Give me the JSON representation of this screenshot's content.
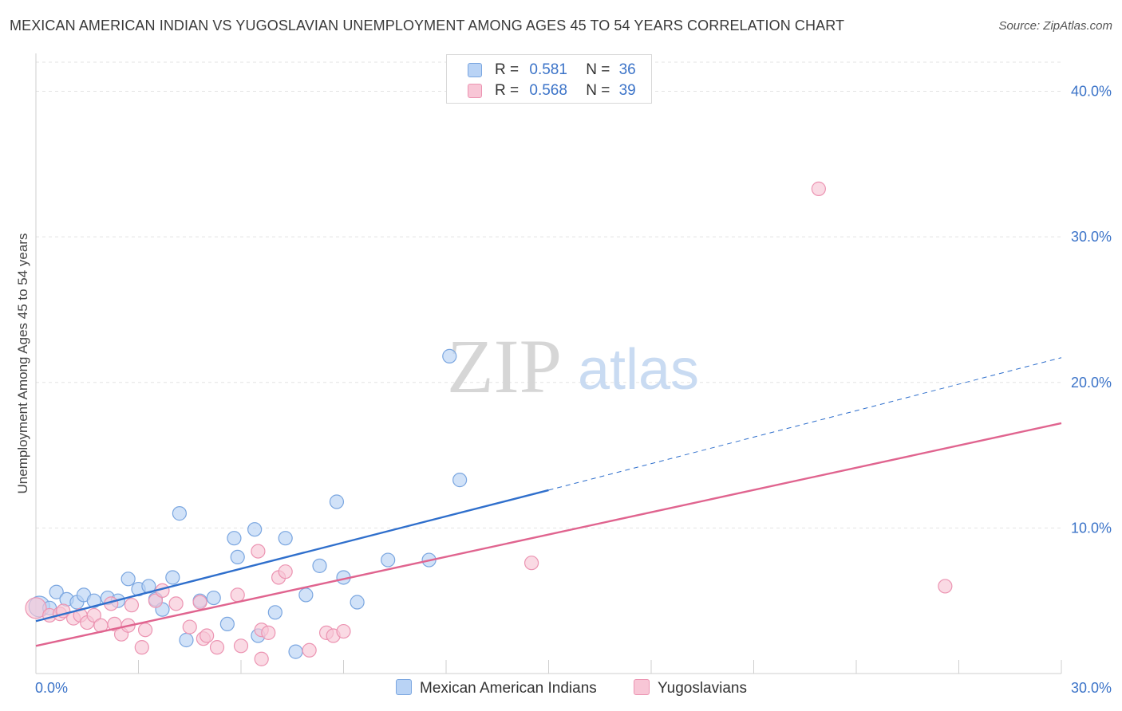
{
  "title": "MEXICAN AMERICAN INDIAN VS YUGOSLAVIAN UNEMPLOYMENT AMONG AGES 45 TO 54 YEARS CORRELATION CHART",
  "source": "Source: ZipAtlas.com",
  "watermark": {
    "zip": "ZIP",
    "atlas": "atlas"
  },
  "legend": {
    "r_label": "R =",
    "n_label": "N =",
    "rows": [
      {
        "r": "0.581",
        "n": "36"
      },
      {
        "r": "0.568",
        "n": "39"
      }
    ]
  },
  "colors": {
    "blue_fill": "#b9d3f5",
    "blue_stroke": "#7aa6e0",
    "blue_line": "#2f6fcc",
    "pink_fill": "#f8c6d6",
    "pink_stroke": "#ec94b2",
    "pink_line": "#e0648f",
    "tick_label": "#3b73c8",
    "grid": "#e3e3e3"
  },
  "chart_data": {
    "type": "scatter",
    "title": "MEXICAN AMERICAN INDIAN VS YUGOSLAVIAN UNEMPLOYMENT AMONG AGES 45 TO 54 YEARS CORRELATION CHART",
    "xlabel": "",
    "ylabel": "Unemployment Among Ages 45 to 54 years",
    "xlim": [
      0,
      30
    ],
    "ylim": [
      0,
      42
    ],
    "x_tick_labels": [
      "0.0%",
      "30.0%"
    ],
    "y_ticks": [
      10,
      20,
      30,
      40
    ],
    "y_tick_labels": [
      "10.0%",
      "20.0%",
      "30.0%",
      "40.0%"
    ],
    "grid": true,
    "legend_position": "top-center",
    "series": [
      {
        "name": "Mexican American Indians",
        "r": 0.581,
        "n": 36,
        "points": [
          [
            0.1,
            4.6
          ],
          [
            0.4,
            4.5
          ],
          [
            0.6,
            5.6
          ],
          [
            0.9,
            5.1
          ],
          [
            1.2,
            4.9
          ],
          [
            1.4,
            5.4
          ],
          [
            1.7,
            5.0
          ],
          [
            2.1,
            5.2
          ],
          [
            2.4,
            5.0
          ],
          [
            2.7,
            6.5
          ],
          [
            3.0,
            5.8
          ],
          [
            3.3,
            6.0
          ],
          [
            3.5,
            5.1
          ],
          [
            3.7,
            4.4
          ],
          [
            4.0,
            6.6
          ],
          [
            4.2,
            11.0
          ],
          [
            4.4,
            2.3
          ],
          [
            4.8,
            5.0
          ],
          [
            5.2,
            5.2
          ],
          [
            5.6,
            3.4
          ],
          [
            5.8,
            9.3
          ],
          [
            5.9,
            8.0
          ],
          [
            6.4,
            9.9
          ],
          [
            6.5,
            2.6
          ],
          [
            7.0,
            4.2
          ],
          [
            7.3,
            9.3
          ],
          [
            7.9,
            5.4
          ],
          [
            8.3,
            7.4
          ],
          [
            8.8,
            11.8
          ],
          [
            9.0,
            6.6
          ],
          [
            9.4,
            4.9
          ],
          [
            10.3,
            7.8
          ],
          [
            11.5,
            7.8
          ],
          [
            12.1,
            21.8
          ],
          [
            12.4,
            13.3
          ],
          [
            7.6,
            1.5
          ]
        ],
        "trend": {
          "x": [
            0,
            15
          ],
          "y": [
            3.6,
            12.6
          ]
        },
        "trend_extension": {
          "x": [
            15,
            30
          ],
          "y": [
            12.6,
            21.7
          ]
        }
      },
      {
        "name": "Yugoslavians",
        "r": 0.568,
        "n": 39,
        "points": [
          [
            0.0,
            4.5
          ],
          [
            0.4,
            4.0
          ],
          [
            0.7,
            4.1
          ],
          [
            0.8,
            4.3
          ],
          [
            1.1,
            3.8
          ],
          [
            1.3,
            4.0
          ],
          [
            1.5,
            3.5
          ],
          [
            1.7,
            4.0
          ],
          [
            1.9,
            3.3
          ],
          [
            2.2,
            4.8
          ],
          [
            2.3,
            3.4
          ],
          [
            2.5,
            2.7
          ],
          [
            2.7,
            3.3
          ],
          [
            2.8,
            4.7
          ],
          [
            3.1,
            1.8
          ],
          [
            3.2,
            3.0
          ],
          [
            3.5,
            5.0
          ],
          [
            3.7,
            5.7
          ],
          [
            4.1,
            4.8
          ],
          [
            4.5,
            3.2
          ],
          [
            4.9,
            2.4
          ],
          [
            5.0,
            2.6
          ],
          [
            5.3,
            1.8
          ],
          [
            5.9,
            5.4
          ],
          [
            6.0,
            1.9
          ],
          [
            6.6,
            3.0
          ],
          [
            6.5,
            8.4
          ],
          [
            6.8,
            2.8
          ],
          [
            7.1,
            6.6
          ],
          [
            7.3,
            7.0
          ],
          [
            8.0,
            1.6
          ],
          [
            8.5,
            2.8
          ],
          [
            8.7,
            2.6
          ],
          [
            9.0,
            2.9
          ],
          [
            6.6,
            1.0
          ],
          [
            14.5,
            7.6
          ],
          [
            22.9,
            33.3
          ],
          [
            26.6,
            6.0
          ],
          [
            4.8,
            4.9
          ]
        ],
        "trend": {
          "x": [
            0,
            30
          ],
          "y": [
            1.9,
            17.2
          ]
        }
      }
    ]
  },
  "bottom_legend": [
    "Mexican American Indians",
    "Yugoslavians"
  ]
}
